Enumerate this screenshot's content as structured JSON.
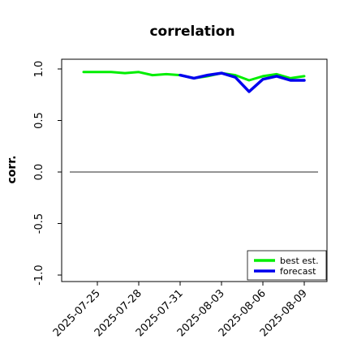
{
  "chart_data": {
    "type": "line",
    "title": "correlation",
    "ylabel": "corr.",
    "xlabel": "",
    "ylim": [
      -1.0,
      1.0
    ],
    "yticks": [
      1.0,
      0.5,
      0.0,
      -0.5,
      -1.0
    ],
    "ytick_labels": [
      "1.0",
      "0.5",
      "0.0",
      "-0.5",
      "-1.0"
    ],
    "x_start": "2025-07-23",
    "x_end": "2025-08-10",
    "xtick_dates": [
      "2025-07-25",
      "2025-07-28",
      "2025-07-31",
      "2025-08-03",
      "2025-08-06",
      "2025-08-09"
    ],
    "xtick_labels": [
      "2025-07-25",
      "2025-07-28",
      "2025-07-31",
      "2025-08-03",
      "2025-08-06",
      "2025-08-09"
    ],
    "xtick_colors": [
      "#000000",
      "#000000",
      "#228B22",
      "#000000",
      "#000000",
      "#000000"
    ],
    "reference_line": 0.0,
    "series": [
      {
        "name": "best est.",
        "color": "#00ee00",
        "x": [
          "2025-07-24",
          "2025-07-25",
          "2025-07-26",
          "2025-07-27",
          "2025-07-28",
          "2025-07-29",
          "2025-07-30",
          "2025-07-31",
          "2025-08-01",
          "2025-08-02",
          "2025-08-03",
          "2025-08-04",
          "2025-08-05",
          "2025-08-06",
          "2025-08-07",
          "2025-08-08",
          "2025-08-09"
        ],
        "values": [
          0.97,
          0.97,
          0.97,
          0.96,
          0.97,
          0.94,
          0.95,
          0.94,
          0.91,
          0.93,
          0.96,
          0.94,
          0.89,
          0.93,
          0.95,
          0.91,
          0.93
        ]
      },
      {
        "name": "forecast",
        "color": "#0000ee",
        "x": [
          "2025-07-31",
          "2025-08-01",
          "2025-08-02",
          "2025-08-03",
          "2025-08-04",
          "2025-08-05",
          "2025-08-06",
          "2025-08-07",
          "2025-08-08",
          "2025-08-09"
        ],
        "values": [
          0.94,
          0.91,
          0.94,
          0.96,
          0.92,
          0.78,
          0.9,
          0.93,
          0.89,
          0.89
        ]
      }
    ],
    "legend": {
      "placement": "lower-right",
      "entries": [
        "best est.",
        "forecast"
      ]
    },
    "grid": false
  }
}
